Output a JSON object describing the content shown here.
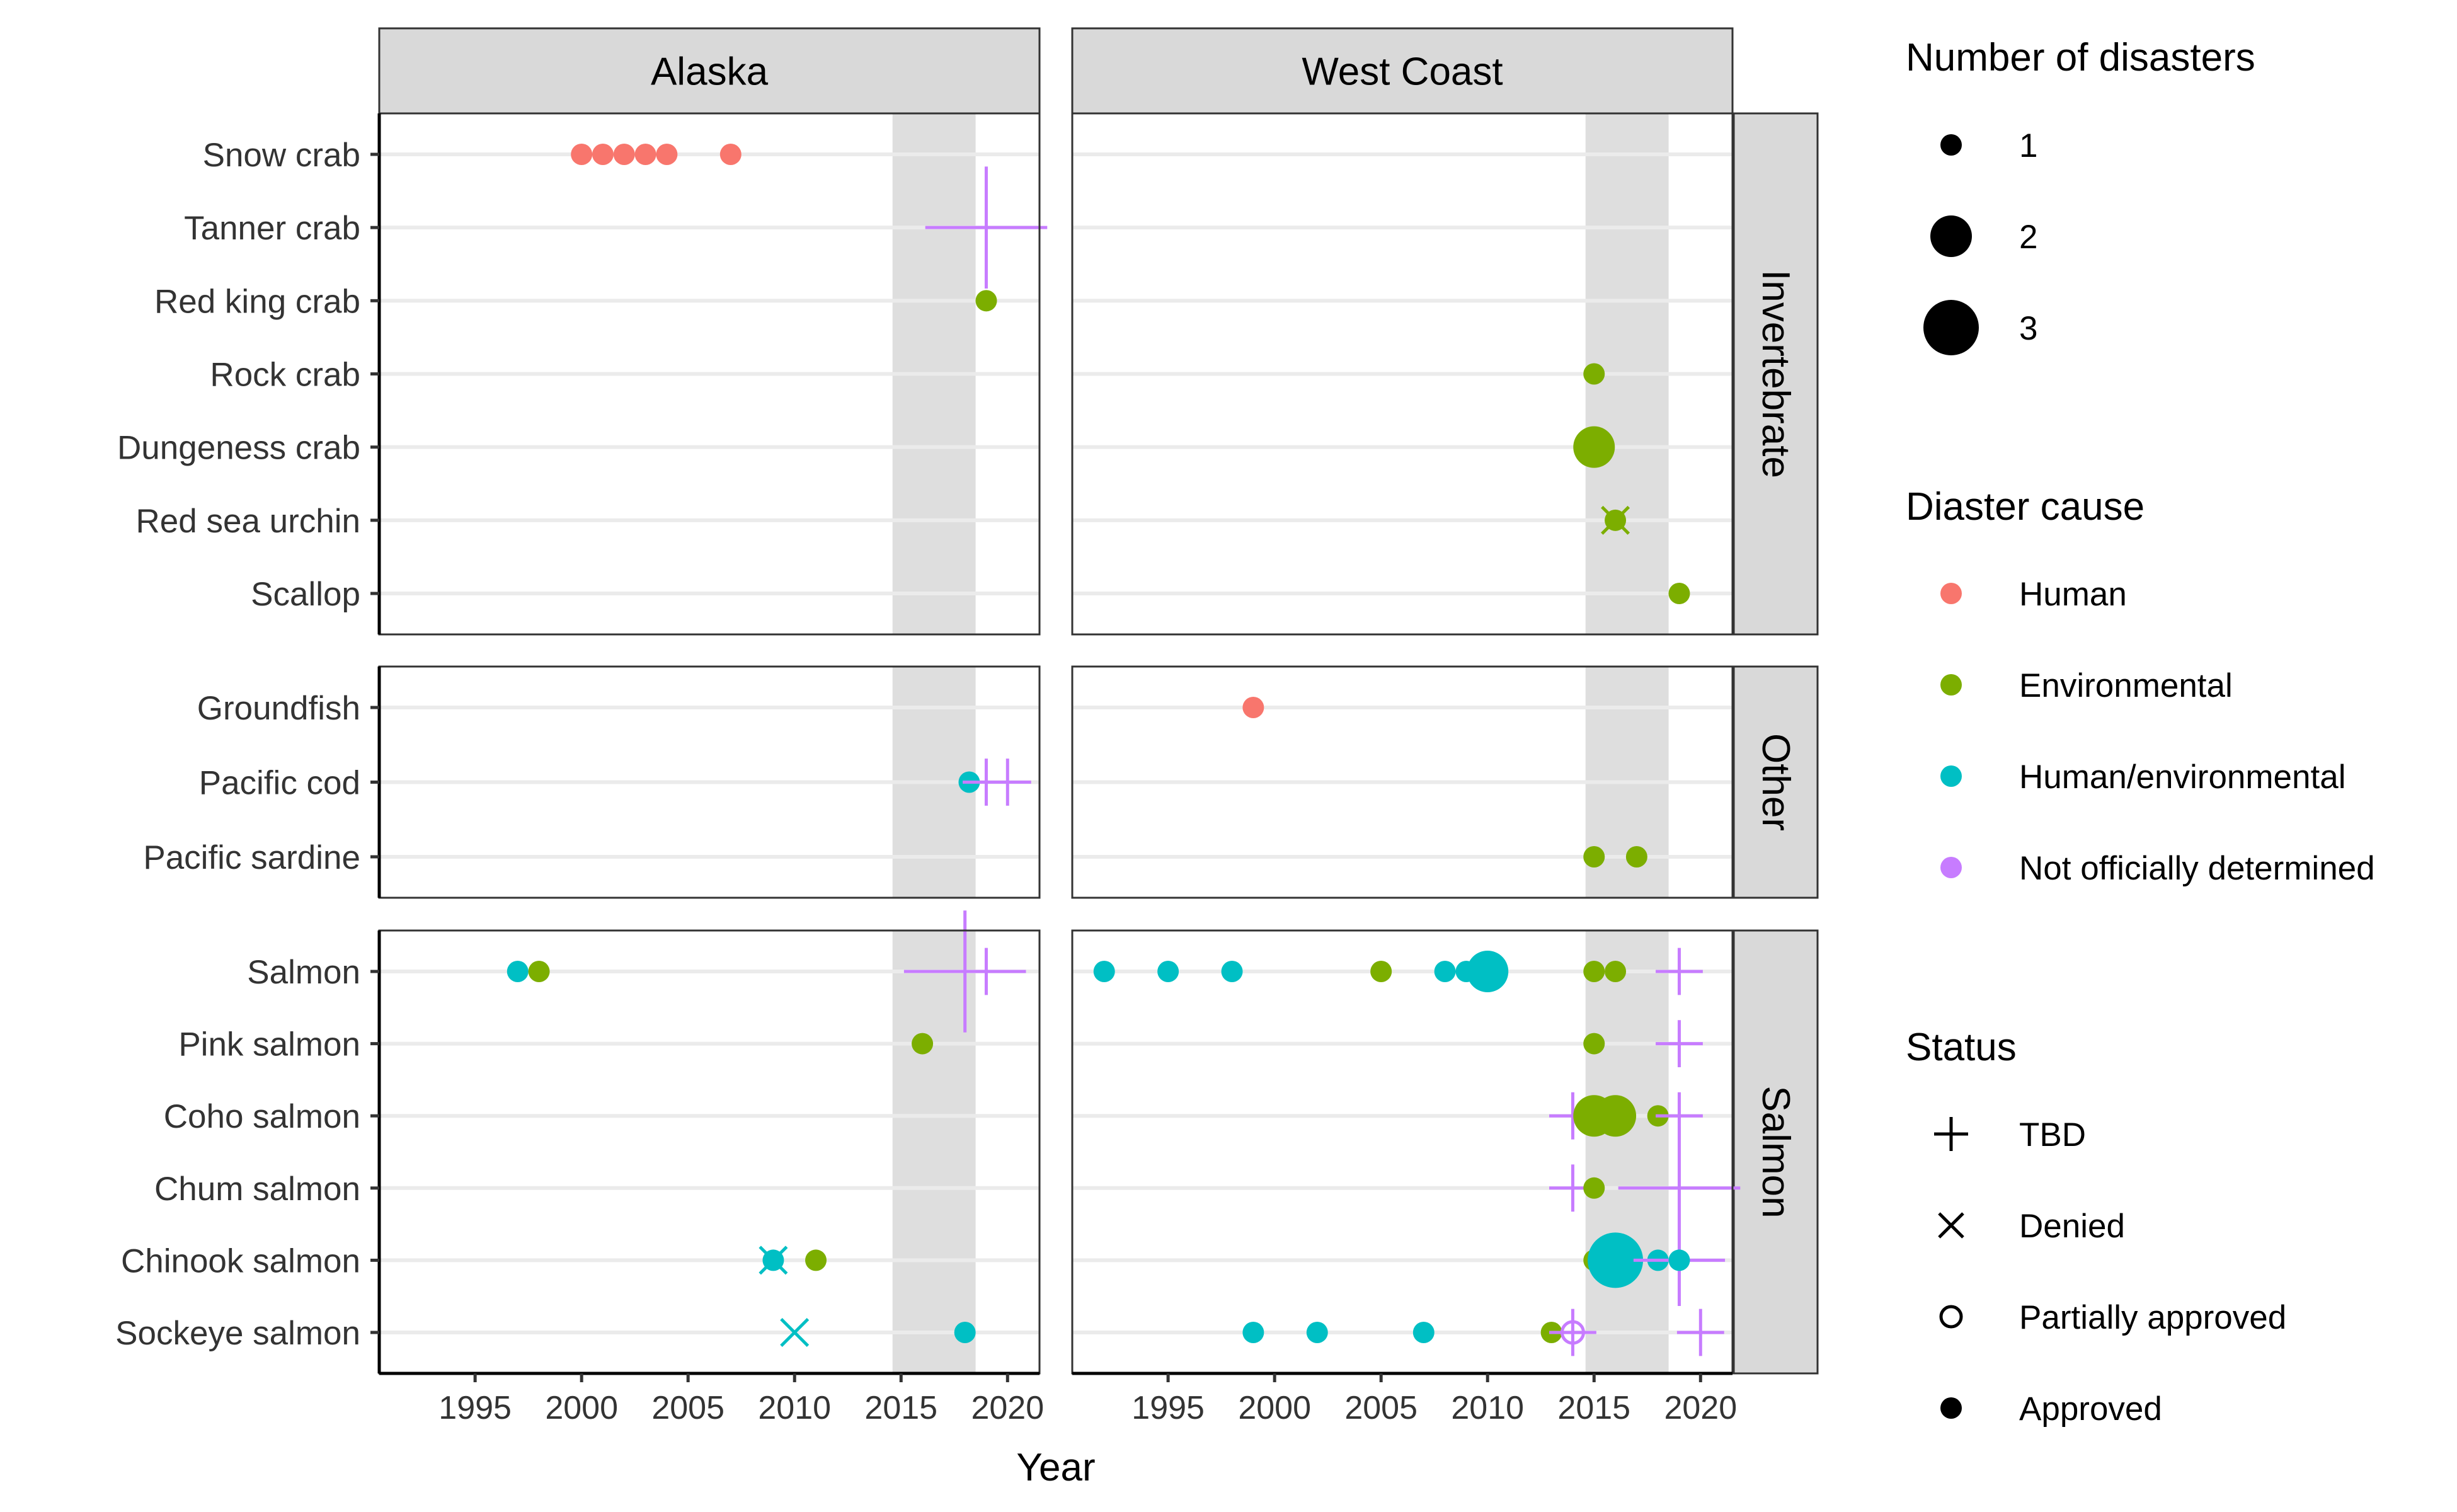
{
  "chart_data": {
    "type": "scatter",
    "xlabel": "Year",
    "xlim": [
      1990.5,
      2021.5
    ],
    "x_ticks": [
      1995,
      2000,
      2005,
      2010,
      2015,
      2020
    ],
    "shaded_interval": [
      2014.6,
      2018.5
    ],
    "columns": [
      "Alaska",
      "West Coast"
    ],
    "rows": [
      {
        "name": "Invertebrate",
        "species": [
          "Snow crab",
          "Tanner crab",
          "Red king crab",
          "Rock crab",
          "Dungeness crab",
          "Red sea urchin",
          "Scallop"
        ]
      },
      {
        "name": "Other",
        "species": [
          "Groundfish",
          "Pacific cod",
          "Pacific sardine"
        ]
      },
      {
        "name": "Salmon",
        "species": [
          "Salmon",
          "Pink salmon",
          "Coho salmon",
          "Chum salmon",
          "Chinook salmon",
          "Sockeye salmon"
        ]
      }
    ],
    "legend": {
      "size": {
        "title": "Number of disasters",
        "entries": [
          "1",
          "2",
          "3"
        ]
      },
      "cause": {
        "title": "Diaster cause",
        "entries": [
          {
            "label": "Human",
            "color": "#F8766D"
          },
          {
            "label": "Environmental",
            "color": "#7CAE00"
          },
          {
            "label": "Human/environmental",
            "color": "#00BFC4"
          },
          {
            "label": "Not officially determined",
            "color": "#C77CFF"
          }
        ]
      },
      "status": {
        "title": "Status",
        "entries": [
          "TBD",
          "Denied",
          "Partially approved",
          "Approved"
        ]
      }
    },
    "points": [
      {
        "region": "Alaska",
        "species": "Snow crab",
        "x": 2000,
        "cause": "Human",
        "status": "Approved",
        "n": 1
      },
      {
        "region": "Alaska",
        "species": "Snow crab",
        "x": 2001,
        "cause": "Human",
        "status": "Approved",
        "n": 1
      },
      {
        "region": "Alaska",
        "species": "Snow crab",
        "x": 2002,
        "cause": "Human",
        "status": "Approved",
        "n": 1
      },
      {
        "region": "Alaska",
        "species": "Snow crab",
        "x": 2003,
        "cause": "Human",
        "status": "Approved",
        "n": 1
      },
      {
        "region": "Alaska",
        "species": "Snow crab",
        "x": 2004,
        "cause": "Human",
        "status": "Approved",
        "n": 1
      },
      {
        "region": "Alaska",
        "species": "Snow crab",
        "x": 2007,
        "cause": "Human",
        "status": "Approved",
        "n": 1
      },
      {
        "region": "Alaska",
        "species": "Tanner crab",
        "x": 2019,
        "cause": "Not officially determined",
        "status": "TBD",
        "n": 3
      },
      {
        "region": "Alaska",
        "species": "Red king crab",
        "x": 2019,
        "cause": "Environmental",
        "status": "Approved",
        "n": 1
      },
      {
        "region": "Alaska",
        "species": "Pacific cod",
        "x": 2018.2,
        "cause": "Human/environmental",
        "status": "Approved",
        "n": 1
      },
      {
        "region": "Alaska",
        "species": "Pacific cod",
        "x": 2019,
        "cause": "Not officially determined",
        "status": "TBD",
        "n": 1
      },
      {
        "region": "Alaska",
        "species": "Pacific cod",
        "x": 2020,
        "cause": "Not officially determined",
        "status": "TBD",
        "n": 1
      },
      {
        "region": "Alaska",
        "species": "Salmon",
        "x": 1997,
        "cause": "Human/environmental",
        "status": "Approved",
        "n": 1
      },
      {
        "region": "Alaska",
        "species": "Salmon",
        "x": 1998,
        "cause": "Environmental",
        "status": "Approved",
        "n": 1
      },
      {
        "region": "Alaska",
        "species": "Salmon",
        "x": 2018,
        "cause": "Not officially determined",
        "status": "TBD",
        "n": 3
      },
      {
        "region": "Alaska",
        "species": "Salmon",
        "x": 2019,
        "cause": "Not officially determined",
        "status": "TBD",
        "n": 1
      },
      {
        "region": "Alaska",
        "species": "Pink salmon",
        "x": 2016,
        "cause": "Environmental",
        "status": "Approved",
        "n": 1
      },
      {
        "region": "Alaska",
        "species": "Chinook salmon",
        "x": 2009,
        "cause": "Human/environmental",
        "status": "Approved",
        "n": 1
      },
      {
        "region": "Alaska",
        "species": "Chinook salmon",
        "x": 2009,
        "cause": "Human/environmental",
        "status": "Denied",
        "n": 1
      },
      {
        "region": "Alaska",
        "species": "Chinook salmon",
        "x": 2011,
        "cause": "Environmental",
        "status": "Approved",
        "n": 1
      },
      {
        "region": "Alaska",
        "species": "Sockeye salmon",
        "x": 2010,
        "cause": "Human/environmental",
        "status": "Denied",
        "n": 1
      },
      {
        "region": "Alaska",
        "species": "Sockeye salmon",
        "x": 2018,
        "cause": "Human/environmental",
        "status": "Approved",
        "n": 1
      },
      {
        "region": "West Coast",
        "species": "Rock crab",
        "x": 2015,
        "cause": "Environmental",
        "status": "Approved",
        "n": 1
      },
      {
        "region": "West Coast",
        "species": "Dungeness crab",
        "x": 2015,
        "cause": "Environmental",
        "status": "Approved",
        "n": 2
      },
      {
        "region": "West Coast",
        "species": "Red sea urchin",
        "x": 2016,
        "cause": "Environmental",
        "status": "Approved",
        "n": 1
      },
      {
        "region": "West Coast",
        "species": "Red sea urchin",
        "x": 2016,
        "cause": "Environmental",
        "status": "Denied",
        "n": 1
      },
      {
        "region": "West Coast",
        "species": "Scallop",
        "x": 2019,
        "cause": "Environmental",
        "status": "Approved",
        "n": 1
      },
      {
        "region": "West Coast",
        "species": "Groundfish",
        "x": 1999,
        "cause": "Human",
        "status": "Approved",
        "n": 1
      },
      {
        "region": "West Coast",
        "species": "Pacific sardine",
        "x": 2015,
        "cause": "Environmental",
        "status": "Approved",
        "n": 1
      },
      {
        "region": "West Coast",
        "species": "Pacific sardine",
        "x": 2017,
        "cause": "Environmental",
        "status": "Approved",
        "n": 1
      },
      {
        "region": "West Coast",
        "species": "Salmon",
        "x": 1992,
        "cause": "Human/environmental",
        "status": "Approved",
        "n": 1
      },
      {
        "region": "West Coast",
        "species": "Salmon",
        "x": 1995,
        "cause": "Human/environmental",
        "status": "Approved",
        "n": 1
      },
      {
        "region": "West Coast",
        "species": "Salmon",
        "x": 1998,
        "cause": "Human/environmental",
        "status": "Approved",
        "n": 1
      },
      {
        "region": "West Coast",
        "species": "Salmon",
        "x": 2005,
        "cause": "Environmental",
        "status": "Approved",
        "n": 1
      },
      {
        "region": "West Coast",
        "species": "Salmon",
        "x": 2008,
        "cause": "Human/environmental",
        "status": "Approved",
        "n": 1
      },
      {
        "region": "West Coast",
        "species": "Salmon",
        "x": 2009,
        "cause": "Human/environmental",
        "status": "Approved",
        "n": 1
      },
      {
        "region": "West Coast",
        "species": "Salmon",
        "x": 2010,
        "cause": "Human/environmental",
        "status": "Approved",
        "n": 2
      },
      {
        "region": "West Coast",
        "species": "Salmon",
        "x": 2015,
        "cause": "Environmental",
        "status": "Approved",
        "n": 1
      },
      {
        "region": "West Coast",
        "species": "Salmon",
        "x": 2016,
        "cause": "Environmental",
        "status": "Approved",
        "n": 1
      },
      {
        "region": "West Coast",
        "species": "Salmon",
        "x": 2019,
        "cause": "Not officially determined",
        "status": "TBD",
        "n": 1
      },
      {
        "region": "West Coast",
        "species": "Pink salmon",
        "x": 2015,
        "cause": "Environmental",
        "status": "Approved",
        "n": 1
      },
      {
        "region": "West Coast",
        "species": "Pink salmon",
        "x": 2019,
        "cause": "Not officially determined",
        "status": "TBD",
        "n": 1
      },
      {
        "region": "West Coast",
        "species": "Coho salmon",
        "x": 2014,
        "cause": "Not officially determined",
        "status": "TBD",
        "n": 1
      },
      {
        "region": "West Coast",
        "species": "Coho salmon",
        "x": 2015,
        "cause": "Environmental",
        "status": "Approved",
        "n": 2
      },
      {
        "region": "West Coast",
        "species": "Coho salmon",
        "x": 2016,
        "cause": "Environmental",
        "status": "Approved",
        "n": 2
      },
      {
        "region": "West Coast",
        "species": "Coho salmon",
        "x": 2018,
        "cause": "Environmental",
        "status": "Approved",
        "n": 1
      },
      {
        "region": "West Coast",
        "species": "Coho salmon",
        "x": 2019,
        "cause": "Not officially determined",
        "status": "TBD",
        "n": 1
      },
      {
        "region": "West Coast",
        "species": "Chum salmon",
        "x": 2014,
        "cause": "Not officially determined",
        "status": "TBD",
        "n": 1
      },
      {
        "region": "West Coast",
        "species": "Chum salmon",
        "x": 2015,
        "cause": "Environmental",
        "status": "Approved",
        "n": 1
      },
      {
        "region": "West Coast",
        "species": "Chum salmon",
        "x": 2019,
        "cause": "Not officially determined",
        "status": "TBD",
        "n": 3
      },
      {
        "region": "West Coast",
        "species": "Chinook salmon",
        "x": 2015,
        "cause": "Environmental",
        "status": "Approved",
        "n": 1
      },
      {
        "region": "West Coast",
        "species": "Chinook salmon",
        "x": 2016,
        "cause": "Human/environmental",
        "status": "Approved",
        "n": 3
      },
      {
        "region": "West Coast",
        "species": "Chinook salmon",
        "x": 2018,
        "cause": "Human/environmental",
        "status": "Approved",
        "n": 1
      },
      {
        "region": "West Coast",
        "species": "Chinook salmon",
        "x": 2019,
        "cause": "Not officially determined",
        "status": "TBD",
        "n": 2
      },
      {
        "region": "West Coast",
        "species": "Chinook salmon",
        "x": 2019,
        "cause": "Human/environmental",
        "status": "Approved",
        "n": 1
      },
      {
        "region": "West Coast",
        "species": "Sockeye salmon",
        "x": 1999,
        "cause": "Human/environmental",
        "status": "Approved",
        "n": 1
      },
      {
        "region": "West Coast",
        "species": "Sockeye salmon",
        "x": 2002,
        "cause": "Human/environmental",
        "status": "Approved",
        "n": 1
      },
      {
        "region": "West Coast",
        "species": "Sockeye salmon",
        "x": 2007,
        "cause": "Human/environmental",
        "status": "Approved",
        "n": 1
      },
      {
        "region": "West Coast",
        "species": "Sockeye salmon",
        "x": 2013,
        "cause": "Environmental",
        "status": "Approved",
        "n": 1
      },
      {
        "region": "West Coast",
        "species": "Sockeye salmon",
        "x": 2014,
        "cause": "Not officially determined",
        "status": "TBD",
        "n": 1
      },
      {
        "region": "West Coast",
        "species": "Sockeye salmon",
        "x": 2014,
        "cause": "Not officially determined",
        "status": "Partially approved",
        "n": 1
      },
      {
        "region": "West Coast",
        "species": "Sockeye salmon",
        "x": 2020,
        "cause": "Not officially determined",
        "status": "TBD",
        "n": 1
      }
    ]
  }
}
